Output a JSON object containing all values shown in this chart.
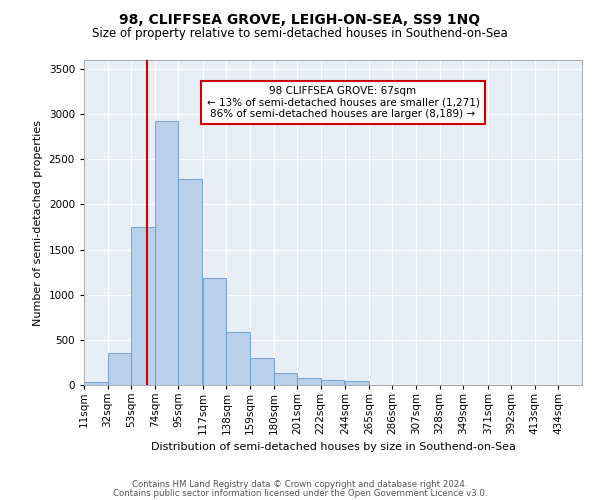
{
  "title": "98, CLIFFSEA GROVE, LEIGH-ON-SEA, SS9 1NQ",
  "subtitle": "Size of property relative to semi-detached houses in Southend-on-Sea",
  "xlabel": "Distribution of semi-detached houses by size in Southend-on-Sea",
  "ylabel": "Number of semi-detached properties",
  "footer_line1": "Contains HM Land Registry data © Crown copyright and database right 2024.",
  "footer_line2": "Contains public sector information licensed under the Open Government Licence v3.0.",
  "property_size": 67,
  "property_label": "98 CLIFFSEA GROVE: 67sqm",
  "pct_smaller": 13,
  "count_smaller": 1271,
  "pct_larger": 86,
  "count_larger": 8189,
  "bin_labels": [
    "11sqm",
    "32sqm",
    "53sqm",
    "74sqm",
    "95sqm",
    "117sqm",
    "138sqm",
    "159sqm",
    "180sqm",
    "201sqm",
    "222sqm",
    "244sqm",
    "265sqm",
    "286sqm",
    "307sqm",
    "328sqm",
    "349sqm",
    "371sqm",
    "392sqm",
    "413sqm",
    "434sqm"
  ],
  "bin_lefts": [
    11,
    32,
    53,
    74,
    95,
    117,
    138,
    159,
    180,
    201,
    222,
    244,
    265,
    286,
    307,
    328,
    349,
    371,
    392,
    413,
    434
  ],
  "bin_width": 21,
  "bar_values": [
    30,
    350,
    1750,
    2920,
    2280,
    1180,
    590,
    300,
    130,
    75,
    60,
    40,
    5,
    0,
    0,
    0,
    0,
    0,
    0,
    0,
    0
  ],
  "bar_color": "#b8d0ea",
  "bar_edge_color": "#6699cc",
  "red_line_color": "#cc0000",
  "annotation_box_color": "#cc0000",
  "bg_color": "#e8eef8",
  "ylim": [
    0,
    3600
  ],
  "yticks": [
    0,
    500,
    1000,
    1500,
    2000,
    2500,
    3000,
    3500
  ]
}
